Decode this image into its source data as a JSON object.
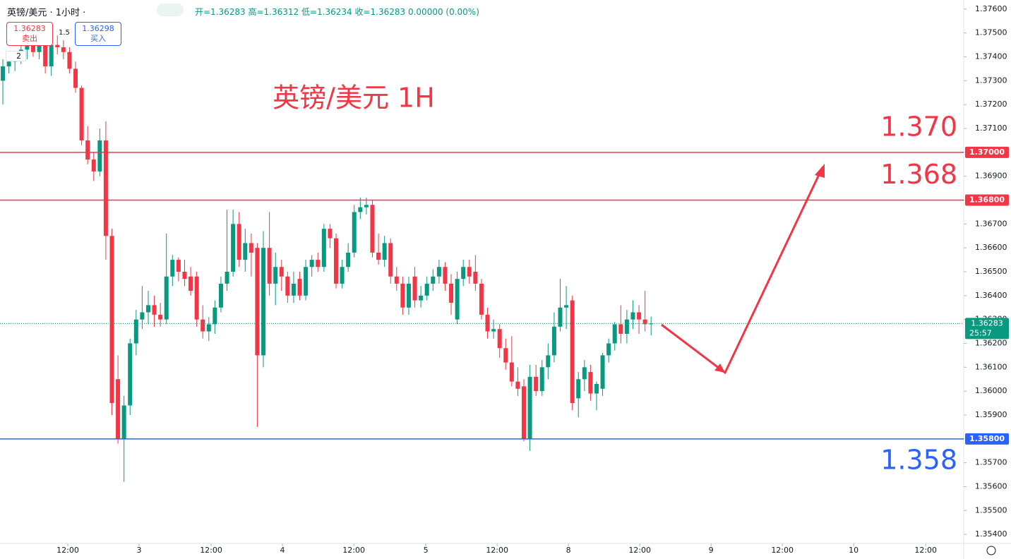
{
  "header": {
    "symbol": "英镑/美元 · 1小时 ·",
    "ohlc": "开=1.36283 高=1.36312 低=1.36234 收=1.36283 0.00000 (0.00%)",
    "sell_price": "1.36283",
    "sell_label": "卖出",
    "spread": "1.5",
    "buy_price": "1.36298",
    "buy_label": "买入",
    "indicator_count": "2"
  },
  "chart_data": {
    "type": "candlestick",
    "title": "英镑/美元 1H",
    "up_color": "#089981",
    "down_color": "#f23645",
    "candles": [
      [
        1.373,
        1.3739,
        1.372,
        1.3736
      ],
      [
        1.3736,
        1.3741,
        1.3733,
        1.3738
      ],
      [
        1.3738,
        1.3742,
        1.3734,
        1.374
      ],
      [
        1.374,
        1.3746,
        1.3737,
        1.3743
      ],
      [
        1.3743,
        1.3747,
        1.3739,
        1.3745
      ],
      [
        1.3745,
        1.3748,
        1.374,
        1.3742
      ],
      [
        1.3742,
        1.3748,
        1.3739,
        1.3746
      ],
      [
        1.3746,
        1.3749,
        1.3733,
        1.3736
      ],
      [
        1.3736,
        1.3749,
        1.3732,
        1.3745
      ],
      [
        1.3745,
        1.3749,
        1.3741,
        1.3744
      ],
      [
        1.3744,
        1.3747,
        1.3739,
        1.3742
      ],
      [
        1.3742,
        1.3744,
        1.3733,
        1.3735
      ],
      [
        1.3735,
        1.3738,
        1.3725,
        1.3727
      ],
      [
        1.3727,
        1.3728,
        1.3703,
        1.3705
      ],
      [
        1.3705,
        1.3711,
        1.3695,
        1.3697
      ],
      [
        1.3697,
        1.37,
        1.3688,
        1.3692
      ],
      [
        1.3692,
        1.371,
        1.369,
        1.3705
      ],
      [
        1.3705,
        1.3713,
        1.3655,
        1.3665
      ],
      [
        1.3665,
        1.3668,
        1.359,
        1.3595
      ],
      [
        1.3605,
        1.3615,
        1.3578,
        1.358
      ],
      [
        1.358,
        1.3598,
        1.3562,
        1.3594
      ],
      [
        1.3594,
        1.3622,
        1.359,
        1.362
      ],
      [
        1.362,
        1.3634,
        1.3615,
        1.363
      ],
      [
        1.363,
        1.3644,
        1.3626,
        1.3633
      ],
      [
        1.3633,
        1.3642,
        1.3628,
        1.3636
      ],
      [
        1.3636,
        1.364,
        1.3627,
        1.3632
      ],
      [
        1.3632,
        1.3637,
        1.3627,
        1.363
      ],
      [
        1.363,
        1.3666,
        1.3628,
        1.3648
      ],
      [
        1.3648,
        1.3657,
        1.3644,
        1.3655
      ],
      [
        1.3655,
        1.3656,
        1.3646,
        1.365
      ],
      [
        1.365,
        1.3655,
        1.3644,
        1.3647
      ],
      [
        1.3648,
        1.3652,
        1.364,
        1.3642
      ],
      [
        1.3648,
        1.365,
        1.3627,
        1.363
      ],
      [
        1.363,
        1.3636,
        1.3622,
        1.3625
      ],
      [
        1.3625,
        1.3631,
        1.3621,
        1.3628
      ],
      [
        1.3628,
        1.3638,
        1.3624,
        1.3635
      ],
      [
        1.3635,
        1.3648,
        1.3633,
        1.3645
      ],
      [
        1.3645,
        1.3676,
        1.3642,
        1.365
      ],
      [
        1.365,
        1.3676,
        1.3648,
        1.367
      ],
      [
        1.367,
        1.3675,
        1.3652,
        1.3655
      ],
      [
        1.3655,
        1.3668,
        1.365,
        1.3662
      ],
      [
        1.3662,
        1.3666,
        1.3648,
        1.3658
      ],
      [
        1.366,
        1.3662,
        1.3585,
        1.3615
      ],
      [
        1.3615,
        1.3667,
        1.361,
        1.366
      ],
      [
        1.366,
        1.3675,
        1.364,
        1.3645
      ],
      [
        1.3645,
        1.3658,
        1.3636,
        1.3652
      ],
      [
        1.3652,
        1.3655,
        1.3642,
        1.3648
      ],
      [
        1.3648,
        1.365,
        1.3637,
        1.364
      ],
      [
        1.364,
        1.365,
        1.3637,
        1.3645
      ],
      [
        1.3647,
        1.365,
        1.3638,
        1.364
      ],
      [
        1.364,
        1.3655,
        1.3638,
        1.3652
      ],
      [
        1.3652,
        1.3657,
        1.3648,
        1.3655
      ],
      [
        1.3655,
        1.3658,
        1.365,
        1.3652
      ],
      [
        1.3652,
        1.367,
        1.365,
        1.3668
      ],
      [
        1.3668,
        1.367,
        1.366,
        1.3664
      ],
      [
        1.3664,
        1.3666,
        1.3643,
        1.3645
      ],
      [
        1.3645,
        1.3655,
        1.3643,
        1.3652
      ],
      [
        1.3652,
        1.3662,
        1.365,
        1.3658
      ],
      [
        1.3658,
        1.3678,
        1.3656,
        1.3675
      ],
      [
        1.3675,
        1.3681,
        1.3672,
        1.3677
      ],
      [
        1.3677,
        1.3681,
        1.3674,
        1.3678
      ],
      [
        1.3678,
        1.368,
        1.3656,
        1.3658
      ],
      [
        1.3658,
        1.3666,
        1.3653,
        1.3655
      ],
      [
        1.3655,
        1.3665,
        1.3652,
        1.3662
      ],
      [
        1.3662,
        1.3664,
        1.3645,
        1.3648
      ],
      [
        1.3648,
        1.3652,
        1.3642,
        1.3645
      ],
      [
        1.3645,
        1.3648,
        1.3632,
        1.3635
      ],
      [
        1.3635,
        1.3648,
        1.3632,
        1.3645
      ],
      [
        1.3648,
        1.3652,
        1.3635,
        1.3638
      ],
      [
        1.3638,
        1.3644,
        1.3635,
        1.364
      ],
      [
        1.364,
        1.3648,
        1.3638,
        1.3645
      ],
      [
        1.3645,
        1.3651,
        1.3642,
        1.3648
      ],
      [
        1.3648,
        1.3655,
        1.3645,
        1.3652
      ],
      [
        1.3652,
        1.3654,
        1.3642,
        1.3645
      ],
      [
        1.3645,
        1.3649,
        1.3632,
        1.3637
      ],
      [
        1.363,
        1.365,
        1.3628,
        1.3647
      ],
      [
        1.3647,
        1.3655,
        1.3644,
        1.3652
      ],
      [
        1.3652,
        1.3655,
        1.3645,
        1.3648
      ],
      [
        1.365,
        1.3657,
        1.3642,
        1.3645
      ],
      [
        1.3645,
        1.3647,
        1.363,
        1.3632
      ],
      [
        1.3632,
        1.3635,
        1.3622,
        1.3625
      ],
      [
        1.3625,
        1.363,
        1.3622,
        1.3626
      ],
      [
        1.3626,
        1.3628,
        1.3614,
        1.3618
      ],
      [
        1.3618,
        1.3622,
        1.3609,
        1.3612
      ],
      [
        1.3612,
        1.3623,
        1.3602,
        1.3604
      ],
      [
        1.3604,
        1.361,
        1.3598,
        1.3601
      ],
      [
        1.3602,
        1.3605,
        1.3579,
        1.358
      ],
      [
        1.358,
        1.3611,
        1.3575,
        1.3606
      ],
      [
        1.3606,
        1.3611,
        1.3598,
        1.36
      ],
      [
        1.36,
        1.3613,
        1.3598,
        1.361
      ],
      [
        1.361,
        1.362,
        1.3605,
        1.3615
      ],
      [
        1.3615,
        1.3633,
        1.3612,
        1.3627
      ],
      [
        1.3627,
        1.3647,
        1.3625,
        1.3635
      ],
      [
        1.3635,
        1.3644,
        1.3626,
        1.3636
      ],
      [
        1.3638,
        1.364,
        1.3592,
        1.3595
      ],
      [
        1.3597,
        1.3608,
        1.3589,
        1.3605
      ],
      [
        1.3605,
        1.3613,
        1.36,
        1.361
      ],
      [
        1.3608,
        1.3611,
        1.3596,
        1.3599
      ],
      [
        1.3599,
        1.3604,
        1.3592,
        1.3603
      ],
      [
        1.3601,
        1.3616,
        1.3598,
        1.3615
      ],
      [
        1.3615,
        1.3622,
        1.3612,
        1.362
      ],
      [
        1.362,
        1.3629,
        1.3617,
        1.3628
      ],
      [
        1.3628,
        1.3636,
        1.362,
        1.3624
      ],
      [
        1.3624,
        1.3634,
        1.362,
        1.363
      ],
      [
        1.363,
        1.3638,
        1.3626,
        1.3633
      ],
      [
        1.3633,
        1.3636,
        1.3624,
        1.363
      ],
      [
        1.363,
        1.3642,
        1.3625,
        1.3628
      ],
      [
        1.36283,
        1.36312,
        1.36234,
        1.36283
      ]
    ],
    "xlim": [
      -0.47,
      158.6
    ],
    "xticks": [
      {
        "value": 10.72,
        "label": "12:00"
      },
      {
        "value": 22.49,
        "label": "3"
      },
      {
        "value": 34.38,
        "label": "12:00"
      },
      {
        "value": 46.15,
        "label": "4"
      },
      {
        "value": 57.93,
        "label": "12:00"
      },
      {
        "value": 69.81,
        "label": "5"
      },
      {
        "value": 81.59,
        "label": "12:00"
      },
      {
        "value": 93.36,
        "label": "8"
      },
      {
        "value": 105.13,
        "label": "12:00"
      },
      {
        "value": 116.9,
        "label": "9"
      },
      {
        "value": 128.67,
        "label": "12:00"
      },
      {
        "value": 140.44,
        "label": "10"
      },
      {
        "value": 152.33,
        "label": "12:00"
      }
    ],
    "ylim": [
      1.35362,
      1.37638
    ],
    "yticks": [
      {
        "value": 1.376,
        "label": "1.37600"
      },
      {
        "value": 1.375,
        "label": "1.37500"
      },
      {
        "value": 1.374,
        "label": "1.37400"
      },
      {
        "value": 1.373,
        "label": "1.37300"
      },
      {
        "value": 1.372,
        "label": "1.37200"
      },
      {
        "value": 1.371,
        "label": "1.37100"
      },
      {
        "value": 1.369,
        "label": "1.36900"
      },
      {
        "value": 1.367,
        "label": "1.36700"
      },
      {
        "value": 1.366,
        "label": "1.36600"
      },
      {
        "value": 1.365,
        "label": "1.36500"
      },
      {
        "value": 1.364,
        "label": "1.36400"
      },
      {
        "value": 1.363,
        "label": "1.36300"
      },
      {
        "value": 1.362,
        "label": "1.36200"
      },
      {
        "value": 1.361,
        "label": "1.36100"
      },
      {
        "value": 1.36,
        "label": "1.36000"
      },
      {
        "value": 1.359,
        "label": "1.35900"
      },
      {
        "value": 1.357,
        "label": "1.35700"
      },
      {
        "value": 1.356,
        "label": "1.35600"
      },
      {
        "value": 1.355,
        "label": "1.35500"
      },
      {
        "value": 1.354,
        "label": "1.35400"
      }
    ],
    "levels": [
      {
        "value": 1.37,
        "label": "1.37000",
        "annotation": "1.370",
        "color": "#f23645"
      },
      {
        "value": 1.368,
        "label": "1.36800",
        "annotation": "1.368",
        "color": "#f23645"
      },
      {
        "value": 1.358,
        "label": "1.35800",
        "annotation": "1.358",
        "color": "#2962ff"
      }
    ],
    "current": {
      "value": 1.36283,
      "label": "1.36283",
      "countdown": "25:57",
      "color": "#089981"
    }
  }
}
